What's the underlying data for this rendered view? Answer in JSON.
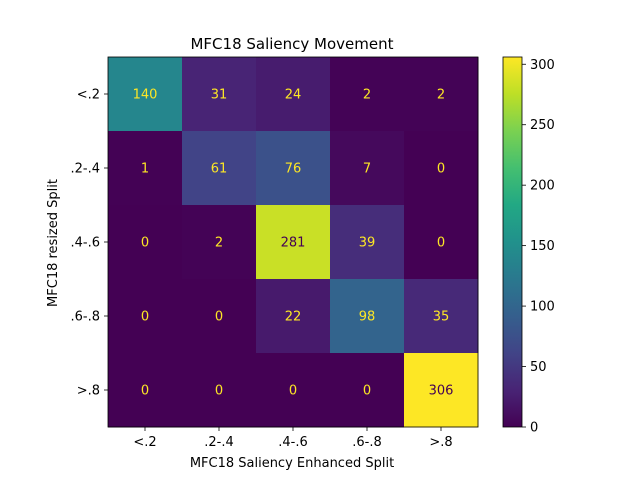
{
  "chart_data": {
    "type": "heatmap",
    "title": "MFC18 Saliency Movement",
    "xlabel": "MFC18 Saliency Enhanced Split",
    "ylabel": "MFC18 resized Split",
    "x_categories": [
      "<.2",
      ".2-.4",
      ".4-.6",
      ".6-.8",
      ">.8"
    ],
    "y_categories": [
      "<.2",
      ".2-.4",
      ".4-.6",
      ".6-.8",
      ">.8"
    ],
    "values": [
      [
        140,
        31,
        24,
        2,
        2
      ],
      [
        1,
        61,
        76,
        7,
        0
      ],
      [
        0,
        2,
        281,
        39,
        0
      ],
      [
        0,
        0,
        22,
        98,
        35
      ],
      [
        0,
        0,
        0,
        0,
        306
      ]
    ],
    "colorbar": {
      "colormap": "viridis",
      "range": [
        0,
        306
      ],
      "ticks": [
        0,
        50,
        100,
        150,
        200,
        250,
        300
      ]
    },
    "label_colors": {
      "on_dark": "#fde725",
      "on_light": "#440154"
    }
  }
}
